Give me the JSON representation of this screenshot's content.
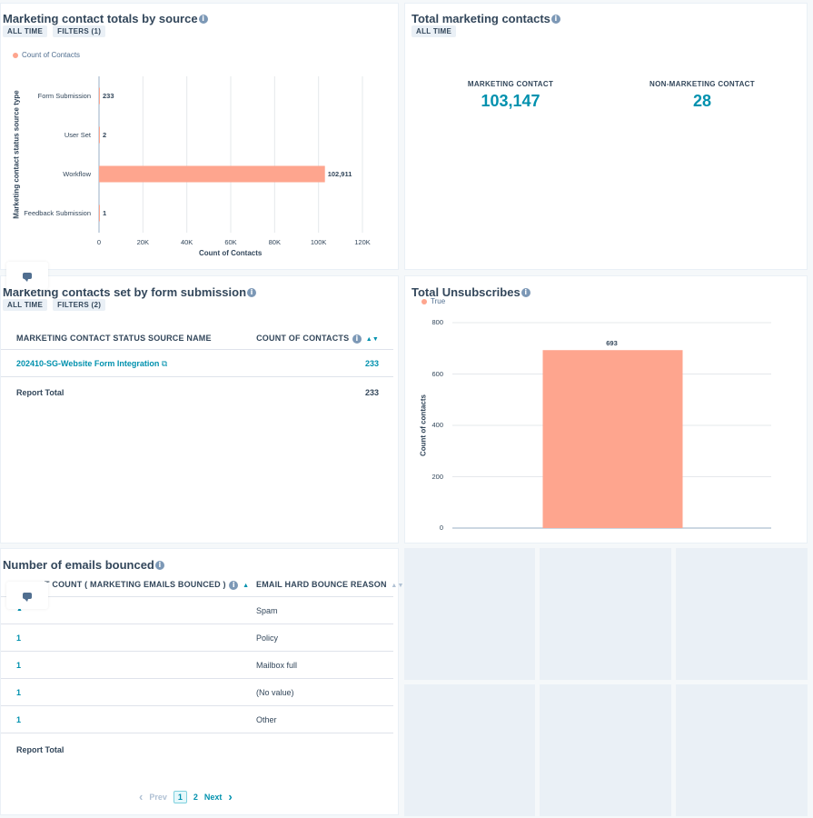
{
  "cards": {
    "totals_by_source": {
      "title": "Marketing contact totals by source",
      "tags": [
        "ALL TIME",
        "FILTERS (1)"
      ],
      "legend": "Count of Contacts"
    },
    "total_marketing": {
      "title": "Total marketing contacts",
      "tags": [
        "ALL TIME"
      ],
      "kpis": [
        {
          "label": "MARKETING CONTACT",
          "value": "103,147"
        },
        {
          "label": "NON-MARKETING CONTACT",
          "value": "28"
        }
      ]
    },
    "form_submission": {
      "title": "Marketing contacts set by form submission",
      "tags": [
        "ALL TIME",
        "FILTERS (2)"
      ],
      "columns": [
        "MARKETING CONTACT STATUS SOURCE NAME",
        "COUNT OF CONTACTS"
      ],
      "rows": [
        {
          "name": "202410-SG-Website Form Integration",
          "count": "233"
        }
      ],
      "total_label": "Report Total",
      "total_value": "233"
    },
    "unsubscribes": {
      "title": "Total Unsubscribes",
      "legend": "True"
    },
    "bounced": {
      "title": "Number of emails bounced",
      "columns": [
        "T COUNT ( MARKETING EMAILS BOUNCED )",
        "EMAIL HARD BOUNCE REASON"
      ],
      "rows": [
        {
          "count": "",
          "reason": "Spam"
        },
        {
          "count": "1",
          "reason": "Policy"
        },
        {
          "count": "1",
          "reason": "Mailbox full"
        },
        {
          "count": "1",
          "reason": "(No value)"
        },
        {
          "count": "1",
          "reason": "Other"
        }
      ],
      "total_label": "Report Total",
      "pager": {
        "prev": "Prev",
        "pages": [
          "1",
          "2"
        ],
        "next": "Next"
      }
    }
  },
  "colors": {
    "bar": "#fea58e",
    "accent": "#0091ae"
  },
  "chart_data": [
    {
      "type": "bar",
      "orientation": "horizontal",
      "categories": [
        "Form Submission",
        "User Set",
        "Workflow",
        "Feedback Submission"
      ],
      "values": [
        233,
        2,
        102911,
        1
      ],
      "value_labels": [
        "233",
        "2",
        "102,911",
        "1"
      ],
      "xlabel": "Count of Contacts",
      "ylabel": "Marketing contact status source type",
      "xlim": [
        0,
        120000
      ],
      "x_ticks": [
        "0",
        "20K",
        "40K",
        "60K",
        "80K",
        "100K",
        "120K"
      ],
      "legend": "top-left",
      "grid": true
    },
    {
      "type": "bar",
      "categories": [
        "True"
      ],
      "values": [
        693
      ],
      "value_labels": [
        "693"
      ],
      "ylabel": "Count of contacts",
      "ylim": [
        0,
        800
      ],
      "y_ticks": [
        "0",
        "200",
        "400",
        "600",
        "800"
      ],
      "legend": "top-left",
      "grid": true
    }
  ]
}
